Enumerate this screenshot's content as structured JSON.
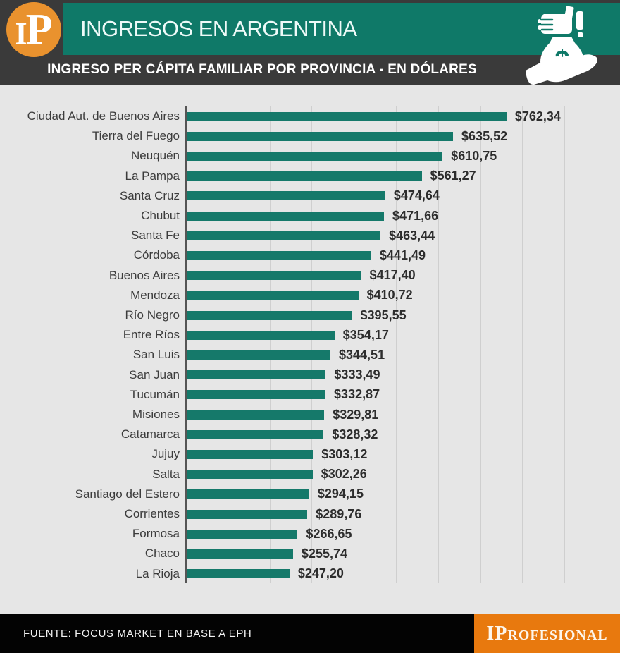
{
  "header": {
    "logo_i": "I",
    "logo_p": "P",
    "title": "INGRESOS EN ARGENTINA",
    "subtitle": "INGRESO PER CÁPITA FAMILIAR POR PROVINCIA - EN DÓLARES"
  },
  "chart_data": {
    "type": "bar",
    "orientation": "horizontal",
    "title": "INGRESO PER CÁPITA FAMILIAR POR PROVINCIA - EN DÓLARES",
    "categories": [
      "Ciudad Aut. de Buenos Aires",
      "Tierra del Fuego",
      "Neuquén",
      "La Pampa",
      "Santa Cruz",
      "Chubut",
      "Santa Fe",
      "Córdoba",
      "Buenos Aires",
      "Mendoza",
      "Río Negro",
      "Entre Ríos",
      "San Luis",
      "San Juan",
      "Tucumán",
      "Misiones",
      "Catamarca",
      "Jujuy",
      "Salta",
      "Santiago del Estero",
      "Corrientes",
      "Formosa",
      "Chaco",
      "La Rioja"
    ],
    "values": [
      762.34,
      635.52,
      610.75,
      561.27,
      474.64,
      471.66,
      463.44,
      441.49,
      417.4,
      410.72,
      395.55,
      354.17,
      344.51,
      333.49,
      332.87,
      329.81,
      328.32,
      303.12,
      302.26,
      294.15,
      289.76,
      266.65,
      255.74,
      247.2
    ],
    "value_labels": [
      "$762,34",
      "$635,52",
      "$610,75",
      "$561,27",
      "$474,64",
      "$471,66",
      "$463,44",
      "$441,49",
      "$417,40",
      "$410,72",
      "$395,55",
      "$354,17",
      "$344,51",
      "$333,49",
      "$332,87",
      "$329,81",
      "$328,32",
      "$303,12",
      "$302,26",
      "$294,15",
      "$289,76",
      "$266,65",
      "$255,74",
      "$247,20"
    ],
    "xlim": [
      0,
      1000
    ],
    "gridline_step": 100,
    "grid": "vertical-only",
    "legend": "none",
    "bar_color": "#15796a"
  },
  "icons": {
    "money_hand_icon": "hand-holding-money-bag-with-dollar-sign-and-fist-with-bill",
    "money_bag_symbol": "$",
    "logo_icon": "ip-orange-circle"
  },
  "colors": {
    "banner_teal": "#0f7968",
    "bar_teal": "#15796a",
    "header_charcoal": "#3a3a3a",
    "chart_background": "#e6e6e6",
    "gridline": "#cfcfcf",
    "axis": "#555555",
    "logo_orange": "#e9922e",
    "brand_orange": "#e8790e",
    "footer_black": "#030303"
  },
  "footer": {
    "source": "FUENTE: FOCUS MARKET EN BASE A EPH",
    "brand": "IProfesional"
  }
}
